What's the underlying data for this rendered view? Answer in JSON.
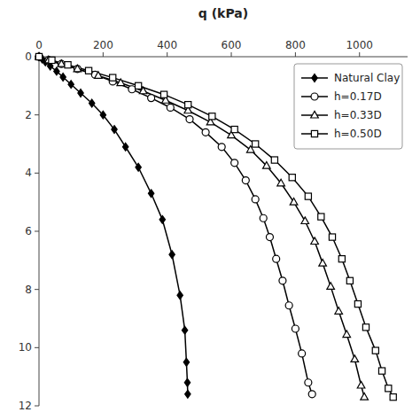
{
  "chart_data": {
    "type": "line",
    "x_label": "q (kPa)",
    "xlim": [
      0,
      1150
    ],
    "ylim": [
      12,
      0
    ],
    "xticks": [
      0,
      200,
      400,
      600,
      800,
      1000
    ],
    "yticks": [
      0,
      2,
      4,
      6,
      8,
      10,
      12
    ],
    "grid": false,
    "legend": "upper right",
    "series": [
      {
        "name": "Natural Clay",
        "color": "#000000",
        "marker": "diamond",
        "x": [
          0,
          10,
          20,
          35,
          55,
          75,
          100,
          130,
          165,
          200,
          235,
          270,
          310,
          350,
          385,
          415,
          440,
          455,
          460,
          463,
          464
        ],
        "values": [
          0,
          0.08,
          0.18,
          0.32,
          0.5,
          0.7,
          0.95,
          1.25,
          1.6,
          2.0,
          2.5,
          3.1,
          3.8,
          4.7,
          5.6,
          6.8,
          8.2,
          9.4,
          10.5,
          11.2,
          11.6
        ]
      },
      {
        "name": "h=0.17D",
        "color": "#000000",
        "marker": "circle-open",
        "x": [
          0,
          30,
          70,
          120,
          175,
          230,
          290,
          350,
          410,
          470,
          520,
          570,
          610,
          645,
          675,
          700,
          720,
          740,
          760,
          780,
          800,
          820,
          840,
          852
        ],
        "values": [
          0,
          0.12,
          0.25,
          0.42,
          0.62,
          0.85,
          1.12,
          1.42,
          1.75,
          2.15,
          2.6,
          3.1,
          3.65,
          4.25,
          4.9,
          5.55,
          6.2,
          6.95,
          7.7,
          8.55,
          9.35,
          10.2,
          11.2,
          11.6
        ]
      },
      {
        "name": "h=0.33D",
        "color": "#000000",
        "marker": "triangle-open",
        "x": [
          0,
          30,
          70,
          120,
          185,
          255,
          325,
          395,
          465,
          535,
          600,
          660,
          710,
          755,
          795,
          830,
          860,
          885,
          910,
          935,
          960,
          985,
          1005,
          1015
        ],
        "values": [
          0,
          0.12,
          0.25,
          0.42,
          0.65,
          0.9,
          1.18,
          1.5,
          1.85,
          2.25,
          2.7,
          3.2,
          3.75,
          4.35,
          5.0,
          5.65,
          6.35,
          7.1,
          7.9,
          8.75,
          9.55,
          10.4,
          11.3,
          11.7
        ]
      },
      {
        "name": "h=0.50D",
        "color": "#000000",
        "marker": "square-open",
        "x": [
          0,
          40,
          90,
          155,
          230,
          310,
          390,
          465,
          540,
          610,
          675,
          735,
          790,
          840,
          880,
          915,
          945,
          970,
          995,
          1020,
          1050,
          1070,
          1090,
          1105
        ],
        "values": [
          0,
          0.12,
          0.28,
          0.48,
          0.72,
          1.0,
          1.3,
          1.65,
          2.05,
          2.5,
          3.0,
          3.55,
          4.15,
          4.8,
          5.5,
          6.2,
          6.95,
          7.7,
          8.5,
          9.3,
          10.1,
          10.8,
          11.4,
          11.7
        ]
      }
    ]
  }
}
